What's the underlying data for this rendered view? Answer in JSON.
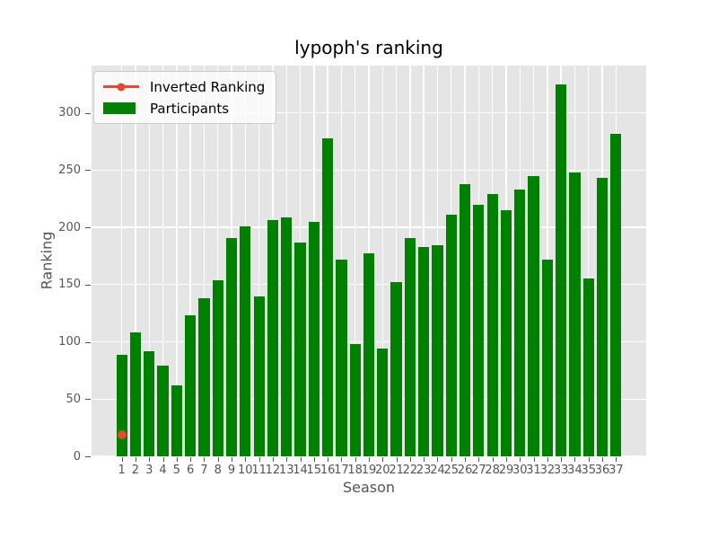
{
  "title": "lypoph's ranking",
  "axes": {
    "xlabel": "Season",
    "ylabel": "Ranking"
  },
  "legend": {
    "position": "upper left",
    "items": [
      {
        "label": "Inverted Ranking",
        "marker": "line-dot",
        "color": "#e24a33"
      },
      {
        "label": "Participants",
        "marker": "swatch",
        "color": "#008000"
      }
    ]
  },
  "colors": {
    "figure_bg": "#ffffff",
    "plot_bg": "#e5e5e5",
    "grid": "#ffffff",
    "bar": "#008000",
    "marker": "#e24a33",
    "tick_text": "#555555",
    "title_text": "#000000"
  },
  "chart_data": {
    "type": "bar",
    "title": "lypoph's ranking",
    "xlabel": "Season",
    "ylabel": "Ranking",
    "categories": [
      1,
      2,
      3,
      4,
      5,
      6,
      7,
      8,
      9,
      10,
      11,
      12,
      13,
      14,
      15,
      16,
      17,
      18,
      19,
      20,
      21,
      22,
      23,
      24,
      25,
      26,
      27,
      28,
      29,
      30,
      31,
      32,
      33,
      34,
      35,
      36,
      37
    ],
    "series": [
      {
        "name": "Participants",
        "type": "bar",
        "color": "#008000",
        "values": [
          89,
          108,
          92,
          79,
          62,
          123,
          138,
          154,
          191,
          201,
          140,
          206,
          209,
          187,
          205,
          278,
          172,
          98,
          177,
          94,
          152,
          191,
          183,
          184,
          211,
          238,
          220,
          229,
          215,
          233,
          245,
          172,
          325,
          248,
          155,
          243,
          282
        ]
      },
      {
        "name": "Inverted Ranking",
        "type": "scatter",
        "color": "#e24a33",
        "points": [
          {
            "x": 1,
            "y": 19
          }
        ]
      }
    ],
    "xlim": [
      -1.2,
      39.2
    ],
    "ylim": [
      0,
      341.25
    ],
    "yticks": [
      0,
      50,
      100,
      150,
      200,
      250,
      300
    ],
    "grid": true,
    "legend_position": "upper left"
  }
}
